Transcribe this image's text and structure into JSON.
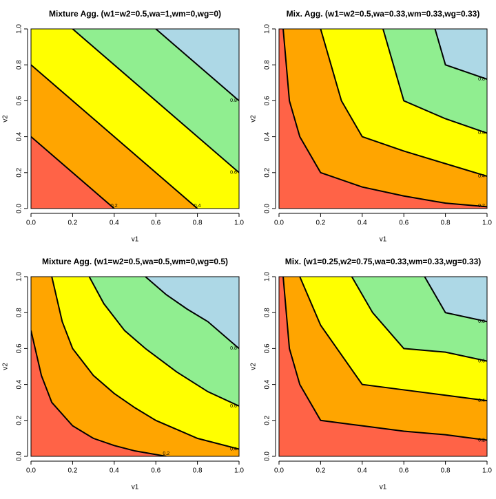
{
  "chart_data": [
    {
      "type": "contour",
      "title": "Mixture Agg. (w1=w2=0.5,wa=1,wm=0,wg=0)",
      "xlabel": "v1",
      "ylabel": "v2",
      "xlim": [
        0,
        1
      ],
      "ylim": [
        0,
        1
      ],
      "xticks": [
        {
          "value": 0,
          "label": "0.0"
        },
        0.2,
        0.4,
        0.6,
        0.8,
        {
          "value": 1,
          "label": "1.0"
        }
      ],
      "yticks": [
        {
          "value": 0,
          "label": "0.0"
        },
        0.2,
        0.4,
        0.6,
        0.8,
        {
          "value": 1,
          "label": "1.0"
        }
      ],
      "colors": [
        "#ff6347",
        "#ffa500",
        "#ffff00",
        "#90ee90",
        "#add8e6"
      ],
      "contours": [
        {
          "level": 0.2,
          "x": [
            0,
            0.4
          ],
          "y": [
            0.4,
            0
          ]
        },
        {
          "level": 0.4,
          "x": [
            0,
            0.8
          ],
          "y": [
            0.8,
            0
          ]
        },
        {
          "level": 0.6,
          "x": [
            0.2,
            1
          ],
          "y": [
            1,
            0.2
          ]
        },
        {
          "level": 0.8,
          "x": [
            0.6,
            1
          ],
          "y": [
            1,
            0.6
          ]
        }
      ]
    },
    {
      "type": "contour",
      "title": "Mix. Agg. (w1=w2=0.5,wa=0.33,wm=0.33,wg=0.33)",
      "xlabel": "v1",
      "ylabel": "v2",
      "xlim": [
        0,
        1
      ],
      "ylim": [
        0,
        1
      ],
      "xticks": [
        {
          "value": 0,
          "label": "0.0"
        },
        0.2,
        0.4,
        0.6,
        0.8,
        {
          "value": 1,
          "label": "1.0"
        }
      ],
      "yticks": [
        {
          "value": 0,
          "label": "0.0"
        },
        0.2,
        0.4,
        0.6,
        0.8,
        {
          "value": 1,
          "label": "1.0"
        }
      ],
      "colors": [
        "#ff6347",
        "#ffa500",
        "#ffff00",
        "#90ee90",
        "#add8e6"
      ],
      "contours": [
        {
          "level": 0.2,
          "x": [
            0.02,
            0.05,
            0.1,
            0.2,
            0.4,
            0.6,
            0.8,
            1
          ],
          "y": [
            1,
            0.6,
            0.4,
            0.2,
            0.12,
            0.07,
            0.03,
            0.01
          ]
        },
        {
          "level": 0.4,
          "x": [
            0.2,
            0.25,
            0.3,
            0.4,
            0.6,
            0.8,
            1
          ],
          "y": [
            1,
            0.8,
            0.6,
            0.4,
            0.32,
            0.25,
            0.18
          ]
        },
        {
          "level": 0.6,
          "x": [
            0.5,
            0.55,
            0.6,
            0.8,
            1
          ],
          "y": [
            1,
            0.8,
            0.6,
            0.5,
            0.42
          ]
        },
        {
          "level": 0.8,
          "x": [
            0.75,
            0.8,
            1
          ],
          "y": [
            1,
            0.8,
            0.72
          ]
        }
      ]
    },
    {
      "type": "contour",
      "title": "Mixture Agg. (w1=w2=0.5,wa=0.5,wm=0,wg=0.5)",
      "xlabel": "v1",
      "ylabel": "v2",
      "xlim": [
        0,
        1
      ],
      "ylim": [
        0,
        1
      ],
      "xticks": [
        {
          "value": 0,
          "label": "0.0"
        },
        0.2,
        0.4,
        0.6,
        0.8,
        {
          "value": 1,
          "label": "1.0"
        }
      ],
      "yticks": [
        {
          "value": 0,
          "label": "0.0"
        },
        0.2,
        0.4,
        0.6,
        0.8,
        {
          "value": 1,
          "label": "1.0"
        }
      ],
      "colors": [
        "#ff6347",
        "#ffa500",
        "#ffff00",
        "#90ee90",
        "#add8e6"
      ],
      "contours": [
        {
          "level": 0.2,
          "x": [
            0,
            0.05,
            0.1,
            0.2,
            0.3,
            0.4,
            0.5,
            0.6,
            0.65
          ],
          "y": [
            0.7,
            0.45,
            0.3,
            0.17,
            0.1,
            0.06,
            0.03,
            0.01,
            0
          ]
        },
        {
          "level": 0.4,
          "x": [
            0.1,
            0.15,
            0.2,
            0.3,
            0.4,
            0.5,
            0.6,
            0.7,
            0.8,
            1
          ],
          "y": [
            1,
            0.75,
            0.6,
            0.45,
            0.35,
            0.27,
            0.2,
            0.15,
            0.1,
            0.04
          ]
        },
        {
          "level": 0.6,
          "x": [
            0.28,
            0.35,
            0.45,
            0.55,
            0.7,
            0.85,
            1
          ],
          "y": [
            1,
            0.85,
            0.7,
            0.6,
            0.47,
            0.36,
            0.28
          ]
        },
        {
          "level": 0.8,
          "x": [
            0.55,
            0.65,
            0.75,
            0.85,
            1
          ],
          "y": [
            1,
            0.9,
            0.82,
            0.75,
            0.6
          ]
        }
      ]
    },
    {
      "type": "contour",
      "title": "Mix. (w1=0.25,w2=0.75,wa=0.33,wm=0.33,wg=0.33)",
      "xlabel": "v1",
      "ylabel": "v2",
      "xlim": [
        0,
        1
      ],
      "ylim": [
        0,
        1
      ],
      "xticks": [
        {
          "value": 0,
          "label": "0.0"
        },
        0.2,
        0.4,
        0.6,
        0.8,
        {
          "value": 1,
          "label": "1.0"
        }
      ],
      "yticks": [
        {
          "value": 0,
          "label": "0.0"
        },
        0.2,
        0.4,
        0.6,
        0.8,
        {
          "value": 1,
          "label": "1.0"
        }
      ],
      "colors": [
        "#ff6347",
        "#ffa500",
        "#ffff00",
        "#90ee90",
        "#add8e6"
      ],
      "contours": [
        {
          "level": 0.2,
          "x": [
            0.02,
            0.05,
            0.1,
            0.2,
            0.4,
            0.6,
            0.8,
            1
          ],
          "y": [
            1,
            0.6,
            0.4,
            0.2,
            0.17,
            0.14,
            0.12,
            0.09
          ]
        },
        {
          "level": 0.4,
          "x": [
            0.1,
            0.2,
            0.4,
            0.6,
            0.8,
            1
          ],
          "y": [
            1,
            0.73,
            0.4,
            0.37,
            0.34,
            0.31
          ]
        },
        {
          "level": 0.6,
          "x": [
            0.35,
            0.45,
            0.6,
            0.8,
            1
          ],
          "y": [
            1,
            0.8,
            0.6,
            0.58,
            0.53
          ]
        },
        {
          "level": 0.8,
          "x": [
            0.7,
            0.8,
            1
          ],
          "y": [
            1,
            0.8,
            0.75
          ]
        }
      ]
    }
  ]
}
